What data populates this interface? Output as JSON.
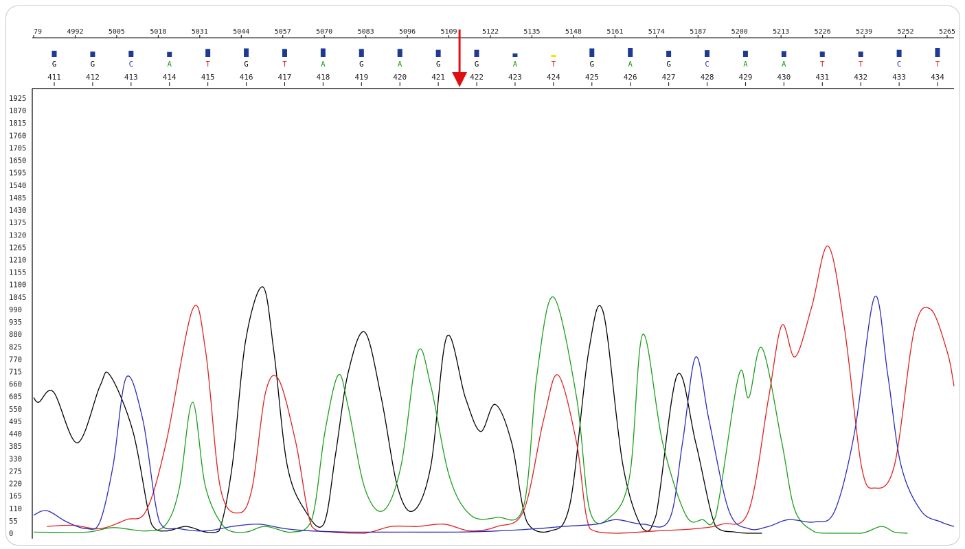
{
  "chart_data": {
    "type": "line",
    "title": "",
    "xlabel": "",
    "ylabel": "",
    "ylim": [
      0,
      1925
    ],
    "y_ticks": [
      "0",
      "55",
      "110",
      "165",
      "220",
      "275",
      "330",
      "385",
      "440",
      "495",
      "550",
      "605",
      "660",
      "715",
      "770",
      "825",
      "880",
      "935",
      "990",
      "1045",
      "1100",
      "1155",
      "1210",
      "1265",
      "1320",
      "1375",
      "1430",
      "1485",
      "1540",
      "1595",
      "1650",
      "1705",
      "1760",
      "1815",
      "1870",
      "1925"
    ],
    "scan_ticks": [
      "79",
      "4992",
      "5005",
      "5018",
      "5031",
      "5044",
      "5057",
      "5070",
      "5083",
      "5096",
      "5109",
      "5122",
      "5135",
      "5148",
      "5161",
      "5174",
      "5187",
      "5200",
      "5213",
      "5226",
      "5239",
      "5252",
      "5265"
    ],
    "base_calls": [
      {
        "pos": "411",
        "base": "G",
        "quality": 0.35
      },
      {
        "pos": "412",
        "base": "G",
        "quality": 0.3
      },
      {
        "pos": "413",
        "base": "C",
        "quality": 0.35
      },
      {
        "pos": "414",
        "base": "A",
        "quality": 0.28
      },
      {
        "pos": "415",
        "base": "T",
        "quality": 0.45
      },
      {
        "pos": "416",
        "base": "G",
        "quality": 0.48
      },
      {
        "pos": "417",
        "base": "T",
        "quality": 0.45
      },
      {
        "pos": "418",
        "base": "A",
        "quality": 0.48
      },
      {
        "pos": "419",
        "base": "G",
        "quality": 0.45
      },
      {
        "pos": "420",
        "base": "A",
        "quality": 0.45
      },
      {
        "pos": "421",
        "base": "G",
        "quality": 0.4
      },
      {
        "pos": "422",
        "base": "G",
        "quality": 0.4
      },
      {
        "pos": "423",
        "base": "A",
        "quality": 0.2
      },
      {
        "pos": "424",
        "base": "T",
        "quality": 0.12
      },
      {
        "pos": "425",
        "base": "G",
        "quality": 0.48
      },
      {
        "pos": "426",
        "base": "A",
        "quality": 0.5
      },
      {
        "pos": "427",
        "base": "G",
        "quality": 0.35
      },
      {
        "pos": "428",
        "base": "C",
        "quality": 0.38
      },
      {
        "pos": "429",
        "base": "A",
        "quality": 0.35
      },
      {
        "pos": "430",
        "base": "A",
        "quality": 0.33
      },
      {
        "pos": "431",
        "base": "T",
        "quality": 0.3
      },
      {
        "pos": "432",
        "base": "T",
        "quality": 0.3
      },
      {
        "pos": "433",
        "base": "C",
        "quality": 0.4
      },
      {
        "pos": "434",
        "base": "T",
        "quality": 0.5
      }
    ],
    "marker_between": [
      "421",
      "422"
    ],
    "base_colors": {
      "G": "#000000",
      "A": "#1a9e1a",
      "T": "#e02020",
      "C": "#2a2ab8"
    },
    "quality_bar_color": "#1f3a93",
    "low_quality_bar_color": "#f2e600",
    "marker_color": "#e01010",
    "series": [
      {
        "base": "G",
        "color": "#000000",
        "x": [
          0,
          8,
          30,
          66,
          100,
          115,
          150,
          178,
          200,
          230,
          260,
          280,
          300,
          320,
          346,
          363,
          383,
          410,
          438,
          456,
          475,
          500,
          525,
          550,
          574,
          600,
          624,
          652,
          675,
          697,
          722,
          745,
          780,
          810,
          838,
          860,
          890,
          920,
          940,
          972,
          1000,
          1030,
          1060,
          1080,
          1100
        ],
        "values": [
          600,
          580,
          625,
          400,
          650,
          700,
          450,
          40,
          10,
          30,
          5,
          10,
          300,
          850,
          1090,
          800,
          300,
          100,
          40,
          350,
          710,
          890,
          600,
          200,
          100,
          300,
          870,
          600,
          450,
          570,
          400,
          50,
          10,
          130,
          800,
          980,
          300,
          20,
          80,
          700,
          400,
          30,
          5,
          0,
          0
        ]
      },
      {
        "base": "A",
        "color": "#1a9e1a",
        "x": [
          0,
          80,
          120,
          170,
          200,
          220,
          240,
          260,
          290,
          320,
          350,
          390,
          420,
          440,
          460,
          475,
          500,
          528,
          555,
          580,
          600,
          628,
          660,
          700,
          740,
          760,
          785,
          820,
          840,
          870,
          900,
          920,
          950,
          985,
          1010,
          1030,
          1065,
          1080,
          1100,
          1130,
          1150,
          1180,
          1200,
          1250,
          1280,
          1300,
          1320
        ],
        "values": [
          5,
          5,
          25,
          10,
          40,
          200,
          580,
          200,
          20,
          5,
          30,
          5,
          60,
          450,
          700,
          560,
          200,
          100,
          300,
          800,
          650,
          250,
          80,
          70,
          120,
          700,
          1045,
          600,
          100,
          70,
          250,
          880,
          400,
          80,
          60,
          75,
          700,
          600,
          820,
          400,
          100,
          5,
          0,
          0,
          30,
          5,
          0
        ]
      },
      {
        "base": "T",
        "color": "#e02020",
        "x": [
          20,
          60,
          100,
          140,
          170,
          200,
          240,
          260,
          282,
          310,
          330,
          350,
          370,
          396,
          420,
          450,
          500,
          540,
          580,
          620,
          660,
          700,
          740,
          770,
          792,
          820,
          840,
          880,
          940,
          1000,
          1040,
          1080,
          1110,
          1130,
          1150,
          1175,
          1200,
          1225,
          1250,
          1270,
          1300,
          1330,
          1355,
          1380,
          1390
        ],
        "values": [
          30,
          35,
          20,
          60,
          100,
          400,
          990,
          800,
          200,
          90,
          200,
          620,
          680,
          400,
          30,
          5,
          0,
          30,
          30,
          40,
          10,
          30,
          100,
          500,
          700,
          400,
          20,
          0,
          10,
          20,
          40,
          100,
          600,
          920,
          780,
          1000,
          1270,
          900,
          300,
          200,
          300,
          900,
          990,
          800,
          650
        ]
      },
      {
        "base": "C",
        "color": "#2a2ab8",
        "x": [
          0,
          20,
          50,
          80,
          100,
          120,
          140,
          165,
          190,
          220,
          260,
          300,
          340,
          380,
          420,
          480,
          560,
          640,
          700,
          760,
          800,
          850,
          880,
          920,
          960,
          980,
          1000,
          1020,
          1050,
          1080,
          1110,
          1140,
          1180,
          1210,
          1240,
          1270,
          1290,
          1310,
          1340,
          1370,
          1390
        ],
        "values": [
          80,
          100,
          50,
          20,
          50,
          300,
          690,
          500,
          50,
          20,
          10,
          30,
          40,
          20,
          10,
          5,
          5,
          5,
          10,
          20,
          30,
          40,
          60,
          40,
          60,
          400,
          780,
          500,
          100,
          20,
          30,
          60,
          50,
          100,
          450,
          1045,
          700,
          300,
          100,
          50,
          30
        ]
      }
    ]
  }
}
